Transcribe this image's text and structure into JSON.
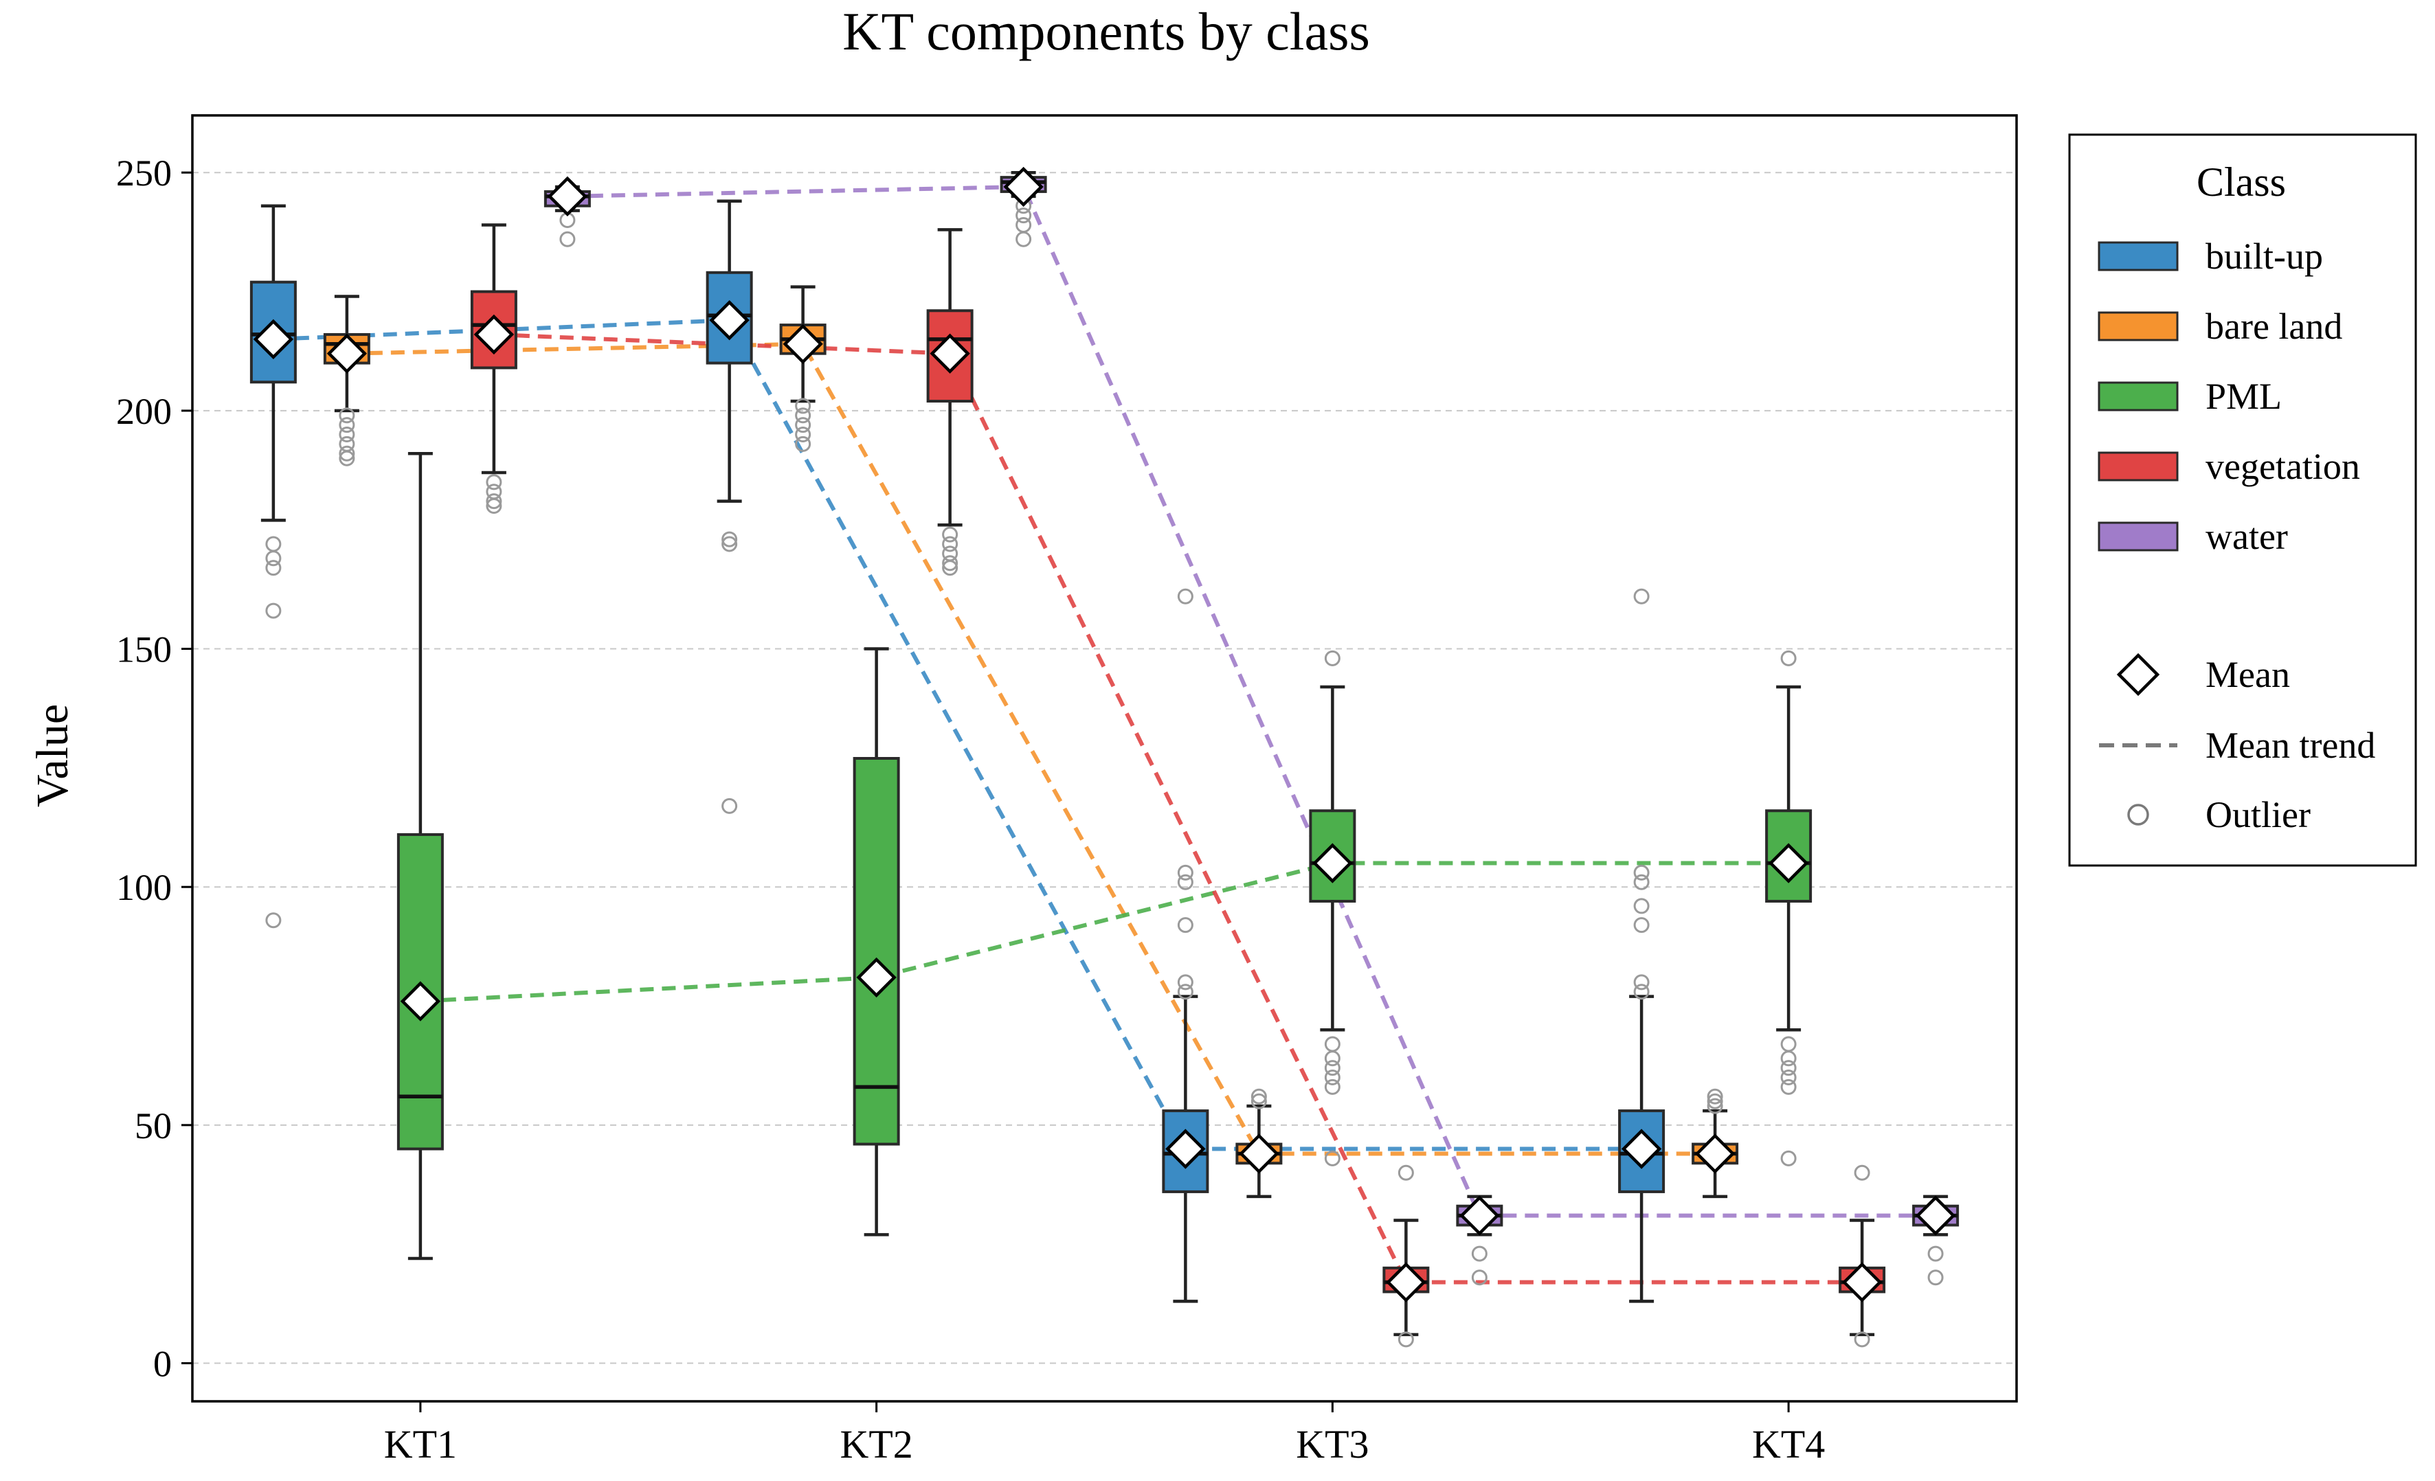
{
  "chart_data": {
    "type": "box",
    "title": "KT components by class",
    "xlabel": "",
    "ylabel": "Value",
    "ylim": [
      -8,
      262
    ],
    "yticks": [
      0,
      50,
      100,
      150,
      200,
      250
    ],
    "grid": "y-dashed",
    "categories": [
      "KT1",
      "KT2",
      "KT3",
      "KT4"
    ],
    "legend": {
      "title": "Class",
      "position": "outside-right",
      "class_entries": [
        "built-up",
        "bare land",
        "PML",
        "vegetation",
        "water"
      ],
      "mean_label": "Mean",
      "trend_label": "Mean trend",
      "outlier_label": "Outlier"
    },
    "series": [
      {
        "name": "built-up",
        "color": "#3b8bc4",
        "boxes": [
          {
            "q1": 206,
            "median": 216,
            "q3": 227,
            "whisker_low": 177,
            "whisker_high": 243,
            "mean": 215,
            "outliers": [
              172,
              169,
              167,
              158,
              93
            ]
          },
          {
            "q1": 210,
            "median": 220,
            "q3": 229,
            "whisker_low": 181,
            "whisker_high": 244,
            "mean": 219,
            "outliers": [
              173,
              172,
              117
            ]
          },
          {
            "q1": 36,
            "median": 44,
            "q3": 53,
            "whisker_low": 13,
            "whisker_high": 77,
            "mean": 45,
            "outliers": [
              80,
              78,
              92,
              101,
              103,
              161
            ]
          },
          {
            "q1": 36,
            "median": 44,
            "q3": 53,
            "whisker_low": 13,
            "whisker_high": 77,
            "mean": 45,
            "outliers": [
              80,
              78,
              92,
              96,
              101,
              103,
              161
            ]
          }
        ]
      },
      {
        "name": "bare land",
        "color": "#f5932f",
        "boxes": [
          {
            "q1": 210,
            "median": 214,
            "q3": 216,
            "whisker_low": 200,
            "whisker_high": 224,
            "mean": 212,
            "outliers": [
              199,
              197,
              195,
              193,
              191,
              190
            ]
          },
          {
            "q1": 212,
            "median": 215,
            "q3": 218,
            "whisker_low": 202,
            "whisker_high": 226,
            "mean": 214,
            "outliers": [
              201,
              199,
              197,
              195,
              193
            ]
          },
          {
            "q1": 42,
            "median": 44,
            "q3": 46,
            "whisker_low": 35,
            "whisker_high": 54,
            "mean": 44,
            "outliers": [
              55,
              56
            ]
          },
          {
            "q1": 42,
            "median": 44,
            "q3": 46,
            "whisker_low": 35,
            "whisker_high": 53,
            "mean": 44,
            "outliers": [
              54,
              55,
              56
            ]
          }
        ]
      },
      {
        "name": "PML",
        "color": "#4caf4c",
        "boxes": [
          {
            "q1": 45,
            "median": 56,
            "q3": 111,
            "whisker_low": 22,
            "whisker_high": 191,
            "mean": 76,
            "outliers": []
          },
          {
            "q1": 46,
            "median": 58,
            "q3": 127,
            "whisker_low": 27,
            "whisker_high": 150,
            "mean": 81,
            "outliers": []
          },
          {
            "q1": 97,
            "median": 105,
            "q3": 116,
            "whisker_low": 70,
            "whisker_high": 142,
            "mean": 105,
            "outliers": [
              148,
              67,
              64,
              62,
              60,
              58,
              43
            ]
          },
          {
            "q1": 97,
            "median": 105,
            "q3": 116,
            "whisker_low": 70,
            "whisker_high": 142,
            "mean": 105,
            "outliers": [
              148,
              67,
              64,
              62,
              60,
              58,
              43
            ]
          }
        ]
      },
      {
        "name": "vegetation",
        "color": "#e04444",
        "boxes": [
          {
            "q1": 209,
            "median": 218,
            "q3": 225,
            "whisker_low": 187,
            "whisker_high": 239,
            "mean": 216,
            "outliers": [
              185,
              183,
              181,
              180
            ]
          },
          {
            "q1": 202,
            "median": 215,
            "q3": 221,
            "whisker_low": 176,
            "whisker_high": 238,
            "mean": 212,
            "outliers": [
              174,
              172,
              170,
              168,
              167
            ]
          },
          {
            "q1": 15,
            "median": 17,
            "q3": 20,
            "whisker_low": 6,
            "whisker_high": 30,
            "mean": 17,
            "outliers": [
              40,
              5
            ]
          },
          {
            "q1": 15,
            "median": 17,
            "q3": 20,
            "whisker_low": 6,
            "whisker_high": 30,
            "mean": 17,
            "outliers": [
              40,
              5
            ]
          }
        ]
      },
      {
        "name": "water",
        "color": "#a07cc9",
        "boxes": [
          {
            "q1": 243,
            "median": 245,
            "q3": 246,
            "whisker_low": 242,
            "whisker_high": 247,
            "mean": 245,
            "outliers": [
              240,
              236
            ]
          },
          {
            "q1": 246,
            "median": 248,
            "q3": 249,
            "whisker_low": 245,
            "whisker_high": 250,
            "mean": 247,
            "outliers": [
              243,
              241,
              239,
              236
            ]
          },
          {
            "q1": 29,
            "median": 31,
            "q3": 33,
            "whisker_low": 27,
            "whisker_high": 35,
            "mean": 31,
            "outliers": [
              23,
              18
            ]
          },
          {
            "q1": 29,
            "median": 31,
            "q3": 33,
            "whisker_low": 27,
            "whisker_high": 35,
            "mean": 31,
            "outliers": [
              23,
              18
            ]
          }
        ]
      }
    ]
  }
}
